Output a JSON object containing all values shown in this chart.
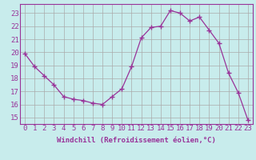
{
  "x": [
    0,
    1,
    2,
    3,
    4,
    5,
    6,
    7,
    8,
    9,
    10,
    11,
    12,
    13,
    14,
    15,
    16,
    17,
    18,
    19,
    20,
    21,
    22,
    23
  ],
  "y": [
    19.9,
    18.9,
    18.2,
    17.5,
    16.6,
    16.4,
    16.3,
    16.1,
    16.0,
    16.6,
    17.2,
    18.9,
    21.1,
    21.9,
    22.0,
    23.2,
    23.0,
    22.4,
    22.7,
    21.7,
    20.7,
    18.4,
    16.9,
    14.8
  ],
  "line_color": "#993399",
  "marker": "D",
  "marker_size": 2,
  "bg_color": "#c8ecec",
  "grid_color": "#aaaaaa",
  "xlabel": "Windchill (Refroidissement éolien,°C)",
  "ylabel_ticks": [
    15,
    16,
    17,
    18,
    19,
    20,
    21,
    22,
    23
  ],
  "xlim": [
    -0.5,
    23.5
  ],
  "ylim": [
    14.5,
    23.7
  ],
  "xlabel_fontsize": 6.5,
  "tick_fontsize": 6.5,
  "label_color": "#993399"
}
